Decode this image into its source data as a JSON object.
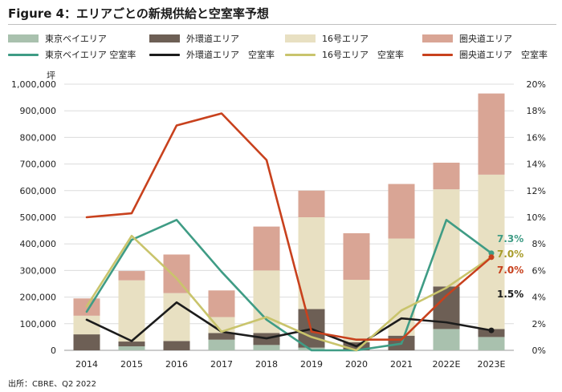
{
  "title": "Figure 4：エリアごとの新規供給と空室率予想",
  "source": "出所：CBRE、Q2 2022",
  "chart_data": {
    "type": "bar",
    "stacked": true,
    "categories": [
      "2014",
      "2015",
      "2016",
      "2017",
      "2018",
      "2019",
      "2020",
      "2021",
      "2022E",
      "2023E"
    ],
    "y_left": {
      "unit": "坪",
      "min": 0,
      "max": 1000000,
      "step": 100000,
      "ticks": [
        "0",
        "100,000",
        "200,000",
        "300,000",
        "400,000",
        "500,000",
        "600,000",
        "700,000",
        "800,000",
        "900,000",
        "1,000,000"
      ]
    },
    "y_right": {
      "min": 0,
      "max": 20,
      "step": 2,
      "ticks": [
        "0%",
        "2%",
        "4%",
        "6%",
        "8%",
        "10%",
        "12%",
        "14%",
        "16%",
        "18%",
        "20%"
      ]
    },
    "bar_series": [
      {
        "name": "東京ベイエリア",
        "color": "#a9c1ae",
        "values": [
          0,
          15000,
          0,
          40000,
          20000,
          10000,
          0,
          0,
          80000,
          50000
        ]
      },
      {
        "name": "外環道エリア",
        "color": "#6d5f55",
        "values": [
          60000,
          18000,
          35000,
          25000,
          45000,
          145000,
          30000,
          55000,
          160000,
          30000
        ]
      },
      {
        "name": "16号エリア",
        "color": "#e8e0c2",
        "values": [
          70000,
          230000,
          180000,
          60000,
          235000,
          345000,
          235000,
          365000,
          365000,
          580000
        ]
      },
      {
        "name": "圏央道エリア",
        "color": "#d9a595",
        "values": [
          65000,
          35000,
          145000,
          100000,
          165000,
          100000,
          175000,
          205000,
          100000,
          305000
        ]
      }
    ],
    "line_series": [
      {
        "name": "東京ベイエリア 空室率",
        "color": "#3f9c85",
        "values": [
          2.9,
          8.3,
          9.8,
          5.9,
          2.3,
          0.0,
          0.0,
          0.5,
          9.8,
          7.3
        ]
      },
      {
        "name": "外環道エリア　空室率",
        "color": "#1c1c1c",
        "values": [
          2.3,
          0.7,
          3.6,
          1.4,
          0.9,
          1.6,
          0.3,
          2.4,
          2.1,
          1.5
        ]
      },
      {
        "name": "16号エリア　空室率",
        "color": "#c9c46c",
        "values": [
          3.3,
          8.6,
          5.4,
          1.4,
          2.5,
          1.0,
          0.0,
          3.0,
          4.7,
          7.0
        ]
      },
      {
        "name": "圏央道エリア　空室率",
        "color": "#c8411d",
        "values": [
          10.0,
          10.3,
          16.9,
          17.8,
          14.3,
          1.4,
          0.8,
          0.8,
          4.1,
          7.0
        ]
      }
    ],
    "annotations": [
      {
        "text": "7.3%",
        "color": "#3f9c85"
      },
      {
        "text": "7.0%",
        "color": "#a89c2a"
      },
      {
        "text": "7.0%",
        "color": "#c8411d"
      },
      {
        "text": "1.5%",
        "color": "#1c1c1c"
      }
    ],
    "grid": true,
    "legend_position": "top"
  }
}
